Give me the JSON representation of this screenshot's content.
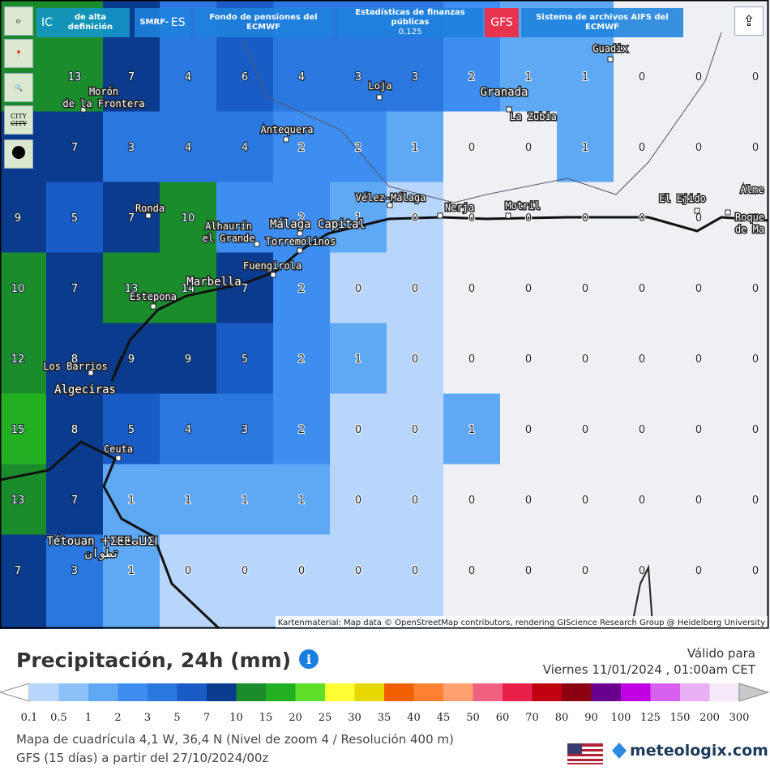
{
  "toolbar": {
    "buttons": [
      {
        "big": "IC",
        "small": "de alta definición"
      },
      {
        "small": "SMRF-",
        "big": "ES"
      },
      {
        "small": "Fondo de pensiones del ECMWF"
      },
      {
        "small": "Estadísticas de finanzas públicas",
        "sub": "0,125"
      },
      {
        "big": "GFS"
      },
      {
        "small": "Sistema de archivos AIFS del ECMWF"
      }
    ],
    "city": [
      "CITY",
      "CITY"
    ]
  },
  "map": {
    "grid": [
      [
        null,
        13,
        7,
        4,
        6,
        4,
        3,
        3,
        2,
        1,
        1,
        0,
        0,
        0
      ],
      [
        null,
        7,
        3,
        4,
        4,
        2,
        2,
        1,
        0,
        0,
        1,
        0,
        0,
        0
      ],
      [
        9,
        5,
        7,
        10,
        null,
        2,
        1,
        0,
        0,
        0,
        0,
        0,
        0,
        0
      ],
      [
        10,
        7,
        13,
        14,
        7,
        2,
        0,
        0,
        0,
        0,
        0,
        0,
        0,
        0
      ],
      [
        12,
        8,
        9,
        9,
        5,
        2,
        1,
        0,
        0,
        0,
        0,
        0,
        0,
        0
      ],
      [
        15,
        8,
        5,
        4,
        3,
        2,
        0,
        0,
        1,
        0,
        0,
        0,
        0,
        0
      ],
      [
        13,
        7,
        1,
        1,
        1,
        1,
        0,
        0,
        0,
        0,
        0,
        0,
        0,
        0
      ],
      [
        7,
        3,
        1,
        0,
        0,
        0,
        0,
        0,
        0,
        0,
        0,
        0,
        0,
        0
      ]
    ],
    "places": [
      {
        "lines": [
          "Guadix"
        ]
      },
      {
        "lines": [
          "Loja"
        ]
      },
      {
        "lines": [
          "Granada"
        ]
      },
      {
        "lines": [
          "La Zubia"
        ]
      },
      {
        "lines": [
          "Antequera"
        ]
      },
      {
        "lines": [
          "Morón",
          "de la Frontera"
        ]
      },
      {
        "lines": [
          "Ronda"
        ]
      },
      {
        "lines": [
          "Alhaurín",
          "el Grande"
        ]
      },
      {
        "lines": [
          "Málaga Capital"
        ]
      },
      {
        "lines": [
          "Torremolinos"
        ]
      },
      {
        "lines": [
          "Fuengirola"
        ]
      },
      {
        "lines": [
          "Marbella"
        ]
      },
      {
        "lines": [
          "Estepona"
        ]
      },
      {
        "lines": [
          "Vélez-Málaga"
        ]
      },
      {
        "lines": [
          "Nerja"
        ]
      },
      {
        "lines": [
          "Motril"
        ]
      },
      {
        "lines": [
          "El Ejido"
        ]
      },
      {
        "lines": [
          "Alme"
        ]
      },
      {
        "lines": [
          "Roque",
          "de Ma"
        ]
      },
      {
        "lines": [
          "Los Barrios"
        ]
      },
      {
        "lines": [
          "Algeciras"
        ]
      },
      {
        "lines": [
          "Ceuta"
        ]
      },
      {
        "lines": [
          "Tétouan ⵜⵉⵟⵟⴰⵡⵉⵏ",
          "تطوان"
        ]
      }
    ],
    "attribution": "Kartenmaterial: Map data © OpenStreetMap contributors, rendering GIScience Research Group @ Heidelberg University"
  },
  "legend": {
    "title": "Precipitación, 24h (mm)",
    "valid_label": "Válido para",
    "valid_time": "Viernes 11/01/2024 , 01:00am CET",
    "labels": [
      0.1,
      0.5,
      1,
      2,
      3,
      5,
      7,
      10,
      15,
      20,
      25,
      30,
      35,
      40,
      45,
      50,
      60,
      70,
      80,
      90,
      100,
      125,
      150,
      200,
      300
    ],
    "colors": [
      "#b8d6fb",
      "#8cc0f8",
      "#5fa8f3",
      "#3d8ef0",
      "#2a77e0",
      "#1a5cc6",
      "#0b3b8c",
      "#1a8c2c",
      "#22b022",
      "#5ee02a",
      "#ffff33",
      "#e6d800",
      "#f06000",
      "#ff8030",
      "#ffa070",
      "#f06080",
      "#e8204a",
      "#c00010",
      "#8a0010",
      "#6a0090",
      "#c000e0",
      "#d860f0",
      "#eab0f5",
      "#f5e8f8",
      "#c8c8c8"
    ]
  },
  "footer": {
    "grid_info": "Mapa de cuadrícula 4,1 W, 36,4 N (Nivel de zoom 4 / Resolución 400 m)",
    "model_info": "GFS (15 días) a partir del 27/10/2024/00z",
    "brand": "meteologix.com"
  }
}
